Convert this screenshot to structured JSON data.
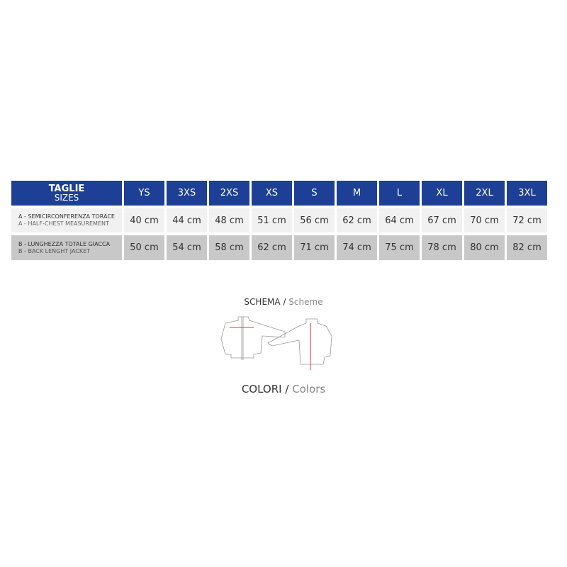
{
  "table": {
    "header": {
      "label_it": "TAGLIE",
      "label_en": "SIZES",
      "sizes": [
        "YS",
        "3XS",
        "2XS",
        "XS",
        "S",
        "M",
        "L",
        "XL",
        "2XL",
        "3XL"
      ]
    },
    "rows": [
      {
        "label_it": "A - SEMICIRCONFERENZA TORACE",
        "label_en": "A - HALF-CHEST MEASUREMENT",
        "values": [
          "40 cm",
          "44 cm",
          "48 cm",
          "51 cm",
          "56 cm",
          "62 cm",
          "64 cm",
          "67 cm",
          "70 cm",
          "72 cm"
        ]
      },
      {
        "label_it": "B - LUNGHEZZA TOTALE GIACCA",
        "label_en": "B - BACK LENGHT JACKET",
        "values": [
          "50 cm",
          "54 cm",
          "58 cm",
          "62 cm",
          "71 cm",
          "74 cm",
          "75 cm",
          "78 cm",
          "80 cm",
          "82 cm"
        ]
      }
    ]
  },
  "scheme": {
    "label_it": "SCHEMA",
    "sep": "/",
    "label_en": "Scheme"
  },
  "colors": {
    "label_it": "COLORI",
    "sep": "/",
    "label_en": "Colors"
  },
  "theme": {
    "header_blue": "#1d3f95",
    "measure_red": "#e03040"
  }
}
